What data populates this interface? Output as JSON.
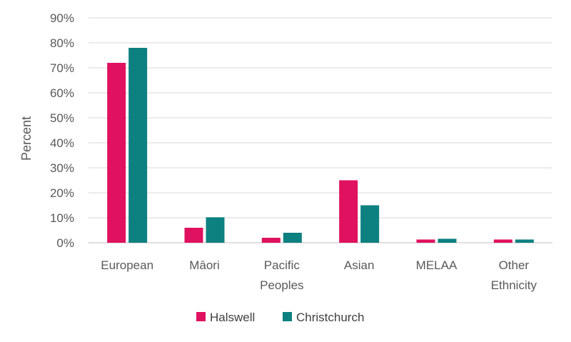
{
  "chart_data": {
    "type": "bar",
    "title": "",
    "xlabel": "",
    "ylabel": "Percent",
    "ylim": [
      0,
      90
    ],
    "yticks": [
      "0%",
      "10%",
      "20%",
      "30%",
      "40%",
      "50%",
      "60%",
      "70%",
      "80%",
      "90%"
    ],
    "categories": [
      [
        "European"
      ],
      [
        "Māori"
      ],
      [
        "Pacific",
        "Peoples"
      ],
      [
        "Asian"
      ],
      [
        "MELAA"
      ],
      [
        "Other",
        "Ethnicity"
      ]
    ],
    "series": [
      {
        "name": "Halswell",
        "color": "#e0115f",
        "values": [
          72,
          6,
          2,
          25,
          1.3,
          1.3
        ]
      },
      {
        "name": "Christchurch",
        "color": "#0d8080",
        "values": [
          78,
          10.2,
          4,
          15,
          1.6,
          1.3
        ]
      }
    ],
    "grid": true,
    "legend": "bottom"
  }
}
